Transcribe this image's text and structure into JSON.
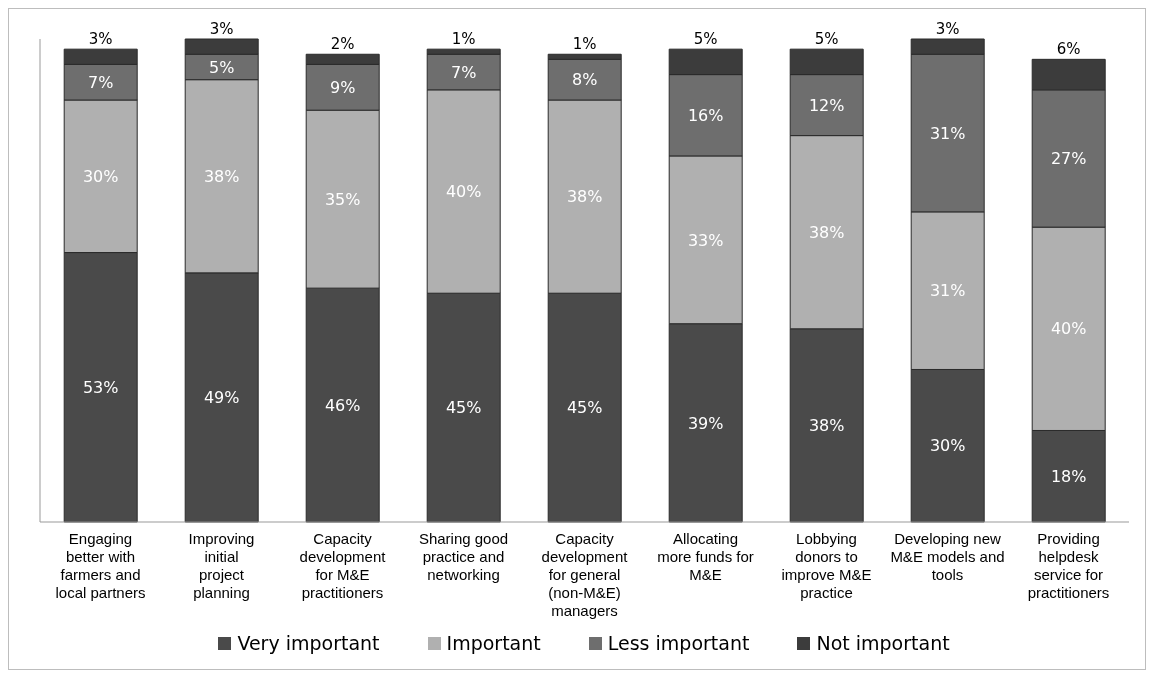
{
  "chart_data": {
    "type": "bar",
    "stacked": true,
    "legend": "bottom",
    "grid": false,
    "categories": [
      "Engaging better with farmers and local partners",
      "Improving initial project planning",
      "Capacity development for M&E practitioners",
      "Sharing good practice and networking",
      "Capacity development for general (non-M&E) managers",
      "Allocating more funds for M&E",
      "Lobbying donors to improve M&E practice",
      "Developing new M&E models and tools",
      "Providing helpdesk service for practitioners"
    ],
    "series": [
      {
        "name": "Very important",
        "color": "#4a4a4a",
        "values": [
          53,
          49,
          46,
          45,
          45,
          39,
          38,
          30,
          18
        ],
        "value_labels": [
          "53%",
          "49%",
          "46%",
          "45%",
          "45%",
          "39%",
          "38%",
          "30%",
          "18%"
        ]
      },
      {
        "name": "Important",
        "color": "#b0b0b0",
        "values": [
          30,
          38,
          35,
          40,
          38,
          33,
          38,
          31,
          40
        ],
        "value_labels": [
          "30%",
          "38%",
          "35%",
          "40%",
          "38%",
          "33%",
          "38%",
          "31%",
          "40%"
        ]
      },
      {
        "name": "Less important",
        "color": "#6e6e6e",
        "values": [
          7,
          5,
          9,
          7,
          8,
          16,
          12,
          31,
          27
        ],
        "value_labels": [
          "7%",
          "5%",
          "9%",
          "7%",
          "8%",
          "16%",
          "12%",
          "31%",
          "27%"
        ]
      },
      {
        "name": "Not important",
        "color": "#3c3c3c",
        "values": [
          3,
          3,
          2,
          1,
          1,
          5,
          5,
          3,
          6
        ],
        "value_labels": [
          "3%",
          "3%",
          "2%",
          "1%",
          "1%",
          "5%",
          "5%",
          "3%",
          "6%"
        ]
      }
    ]
  }
}
